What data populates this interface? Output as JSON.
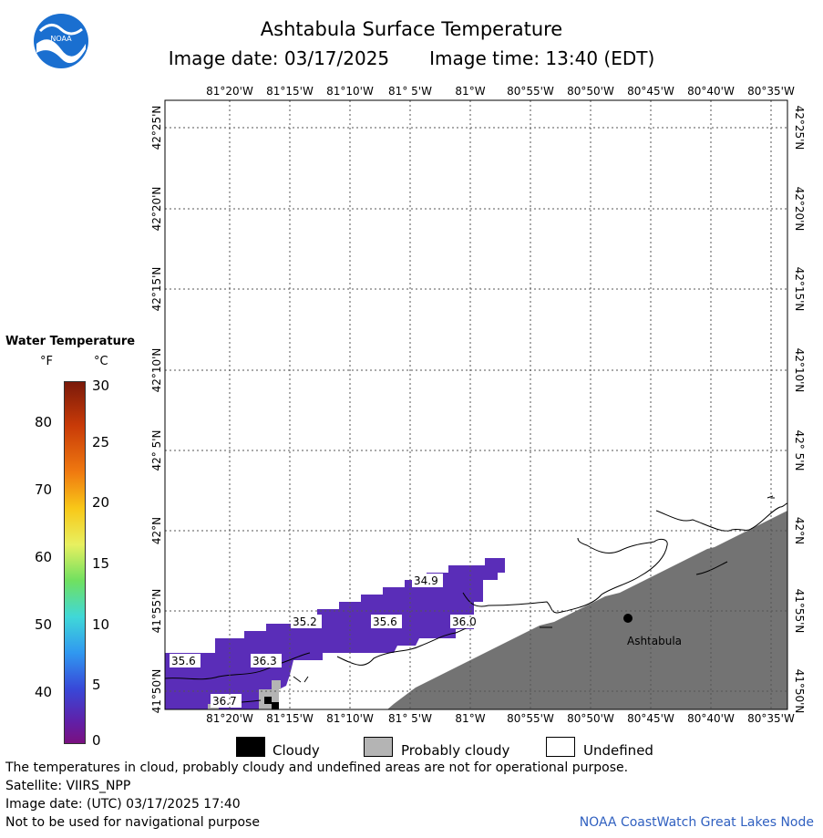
{
  "header": {
    "title": "Ashtabula Surface Temperature",
    "image_date_label": "Image date: 03/17/2025",
    "image_time_label": "Image time: 13:40 (EDT)"
  },
  "logo": {
    "text": "NOAA"
  },
  "map": {
    "lon_labels": [
      "81°20'W",
      "81°15'W",
      "81°10'W",
      "81° 5'W",
      "81°W",
      "80°55'W",
      "80°50'W",
      "80°45'W",
      "80°40'W",
      "80°35'W"
    ],
    "lat_labels": [
      "42°25'N",
      "42°20'N",
      "42°15'N",
      "42°10'N",
      "42° 5'N",
      "42°N",
      "41°55'N",
      "41°50'N"
    ],
    "city_label": "Ashtabula",
    "temp_labels": [
      "34.9",
      "35.2",
      "35.6",
      "36.0",
      "35.6",
      "36.3",
      "36.7"
    ],
    "colors": {
      "water": "#5a2db8",
      "land": "#737373",
      "cloud": "#000000",
      "probably_cloudy": "#b4b4b4"
    }
  },
  "legend": {
    "title": "Water Temperature",
    "unit_f": "°F",
    "unit_c": "°C",
    "f_ticks": [
      "80",
      "70",
      "60",
      "50",
      "40"
    ],
    "c_ticks": [
      "30",
      "25",
      "20",
      "15",
      "10",
      "5",
      "0"
    ]
  },
  "key": {
    "cloudy": "Cloudy",
    "probably_cloudy": "Probably cloudy",
    "undefined": "Undefined"
  },
  "footer": {
    "line1": "The temperatures in cloud, probably cloudy and undefined areas are not for operational purpose.",
    "line2": "Satellite: VIIRS_NPP",
    "line3": "Image date: (UTC) 03/17/2025  17:40",
    "line4": "Not to be used for navigational purpose",
    "credit": "NOAA CoastWatch Great Lakes Node"
  }
}
